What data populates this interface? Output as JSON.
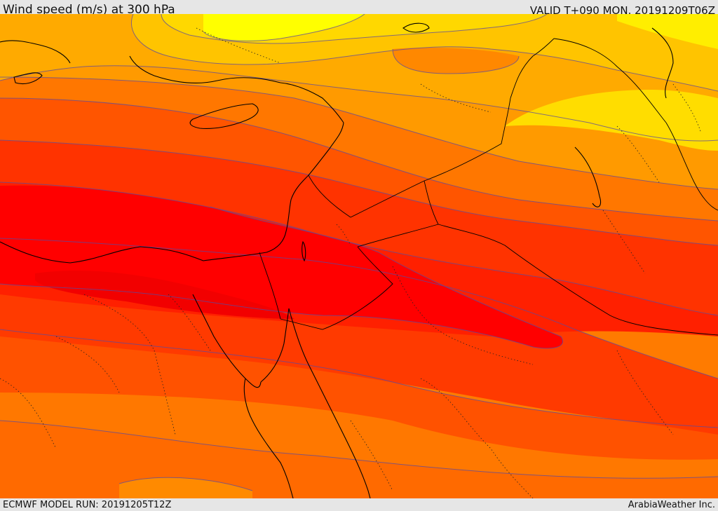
{
  "header": {
    "title": "Wind speed (m/s) at 300 hPa",
    "valid": "VALID T+090 MON. 20191209T06Z"
  },
  "footer": {
    "model_run": "ECMWF MODEL RUN: 20191205T12Z",
    "credit": "ArabiaWeather Inc."
  },
  "map": {
    "variable": "wind speed",
    "level_hpa": 300,
    "units": "m/s",
    "shading_colors": [
      "#ffff00",
      "#ffd700",
      "#ffb000",
      "#ff9a00",
      "#ff7700",
      "#ff5500",
      "#ff3300",
      "#ff0000"
    ],
    "contour_color": "#5555aa",
    "border_style": "solid coastlines and country borders, dotted internal boundaries"
  }
}
